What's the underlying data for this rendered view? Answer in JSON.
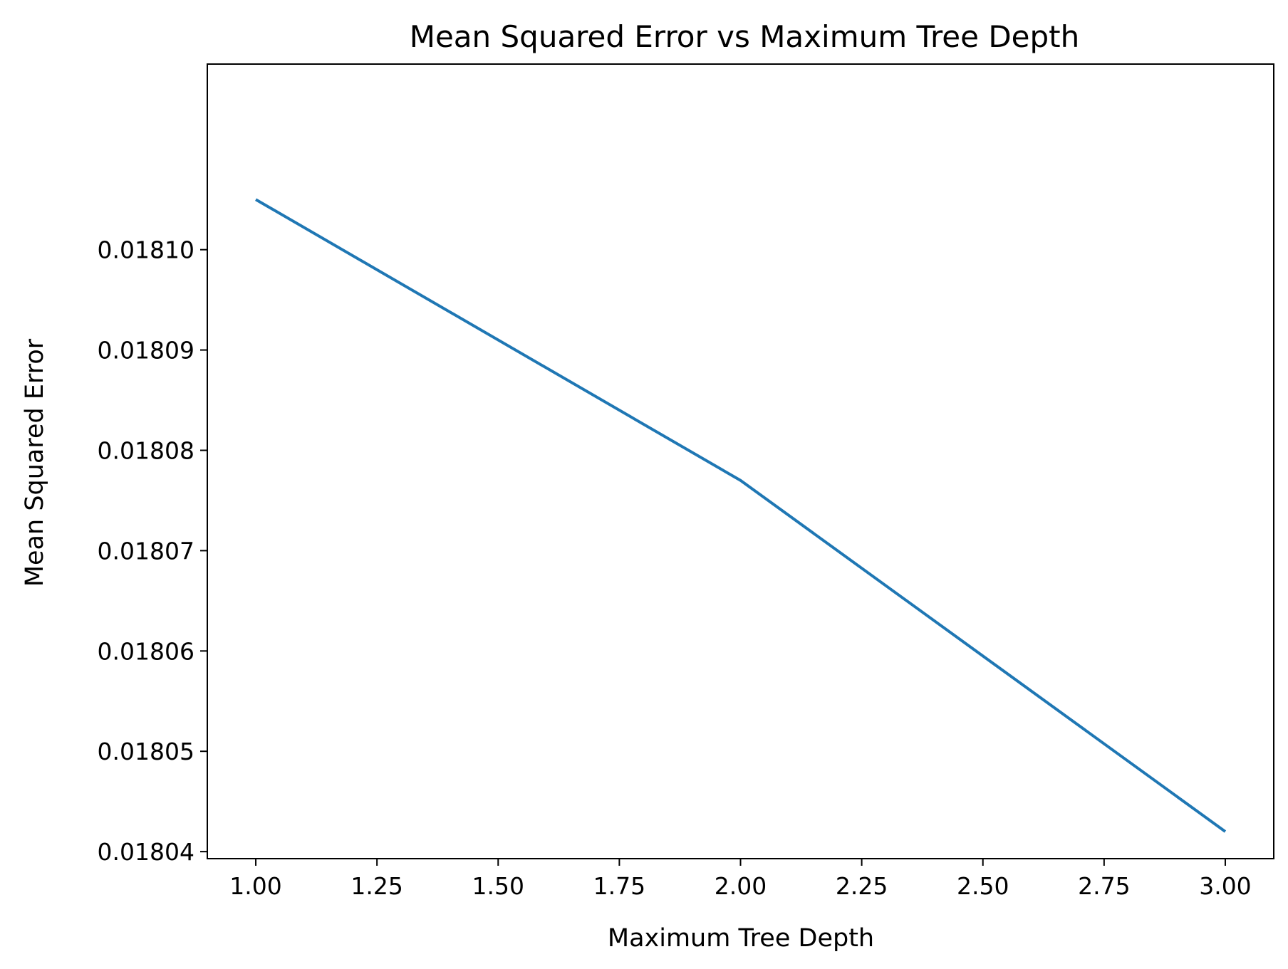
{
  "chart_data": {
    "type": "line",
    "title": "Mean Squared Error vs Maximum Tree Depth",
    "xlabel": "Maximum Tree Depth",
    "ylabel": "Mean Squared Error",
    "x": [
      1.0,
      2.0,
      3.0
    ],
    "series": [
      {
        "values": [
          0.018105,
          0.018077,
          0.018042
        ],
        "color": "#1f77b4"
      }
    ],
    "xlim": [
      0.9,
      3.1
    ],
    "ylim": [
      0.0180393,
      0.0181185
    ],
    "x_ticks": [
      1.0,
      1.25,
      1.5,
      1.75,
      2.0,
      2.25,
      2.5,
      2.75,
      3.0
    ],
    "x_tick_labels": [
      "1.00",
      "1.25",
      "1.50",
      "1.75",
      "2.00",
      "2.25",
      "2.50",
      "2.75",
      "3.00"
    ],
    "y_ticks": [
      0.01804,
      0.01805,
      0.01806,
      0.01807,
      0.01808,
      0.01809,
      0.0181
    ],
    "y_tick_labels": [
      "0.01804",
      "0.01805",
      "0.01806",
      "0.01807",
      "0.01808",
      "0.01809",
      "0.01810"
    ],
    "grid": false,
    "legend": "none"
  }
}
